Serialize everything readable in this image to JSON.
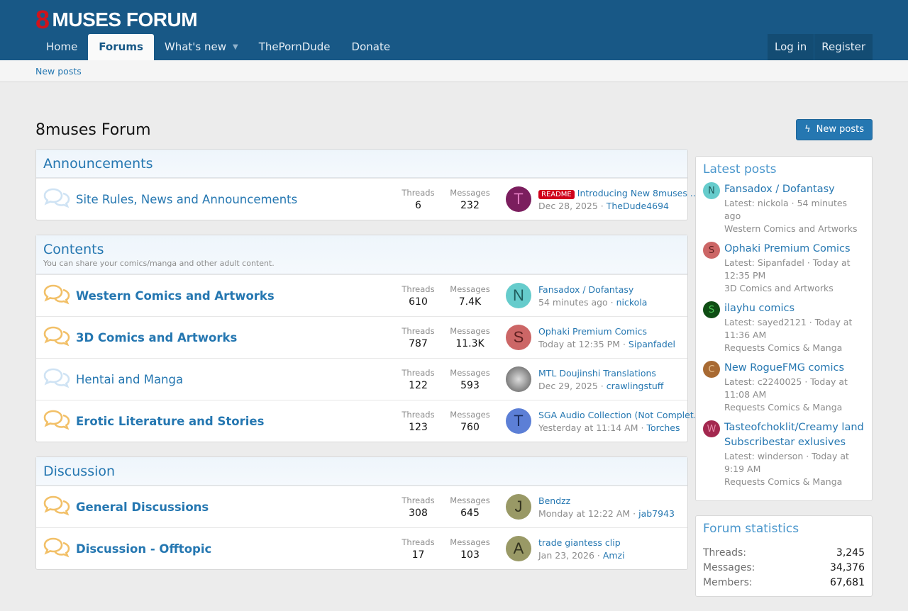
{
  "header": {
    "logo_text": "MUSES FORUM",
    "logo_mark": "8",
    "nav": [
      {
        "label": "Home"
      },
      {
        "label": "Forums",
        "active": true
      },
      {
        "label": "What's new",
        "dropdown": true
      },
      {
        "label": "ThePornDude"
      },
      {
        "label": "Donate"
      }
    ],
    "login": "Log in",
    "register": "Register"
  },
  "subnav": {
    "new_posts": "New posts"
  },
  "page": {
    "title": "8muses Forum",
    "new_posts_button": "New posts"
  },
  "labels": {
    "threads": "Threads",
    "messages": "Messages"
  },
  "colors": {
    "brand": "#185886",
    "link": "#2577b1",
    "unread_icon": "#f2c068",
    "read_icon": "#cfe3f4"
  },
  "categories": [
    {
      "title": "Announcements",
      "description": "",
      "forums": [
        {
          "name": "Site Rules, News and Announcements",
          "unread": false,
          "threads": "6",
          "messages": "232",
          "avatar": "T",
          "avatar_color": "#7b1e5e",
          "avatar_fg": "#e07bc0",
          "prefix": "README",
          "last_title": "Introducing New 8muses ...",
          "last_date": "Dec 28, 2025",
          "last_user": "TheDude4694"
        }
      ]
    },
    {
      "title": "Contents",
      "description": "You can share your comics/manga and other adult content.",
      "forums": [
        {
          "name": "Western Comics and Artworks",
          "unread": true,
          "threads": "610",
          "messages": "7.4K",
          "avatar": "N",
          "avatar_color": "#66cccc",
          "avatar_fg": "#1f5c5c",
          "last_title": "Fansadox / Dofantasy",
          "last_date": "54 minutes ago",
          "last_user": "nickola"
        },
        {
          "name": "3D Comics and Artworks",
          "unread": true,
          "threads": "787",
          "messages": "11.3K",
          "avatar": "S",
          "avatar_color": "#cc6666",
          "avatar_fg": "#5c1f1f",
          "last_title": "Ophaki Premium Comics",
          "last_date": "Today at 12:35 PM",
          "last_user": "Sipanfadel"
        },
        {
          "name": "Hentai and Manga",
          "unread": false,
          "threads": "122",
          "messages": "593",
          "avatar": "",
          "avatar_color": "#888888",
          "avatar_fg": "#fff",
          "last_title": "MTL Doujinshi Translations",
          "last_date": "Dec 29, 2025",
          "last_user": "crawlingstuff"
        },
        {
          "name": "Erotic Literature and Stories",
          "unread": true,
          "threads": "123",
          "messages": "760",
          "avatar": "T",
          "avatar_color": "#5c7fd6",
          "avatar_fg": "#1a2d5c",
          "last_title": "SGA Audio Collection (Not Complet...",
          "last_date": "Yesterday at 11:14 AM",
          "last_user": "Torches"
        }
      ]
    },
    {
      "title": "Discussion",
      "description": "",
      "forums": [
        {
          "name": "General Discussions",
          "unread": true,
          "threads": "308",
          "messages": "645",
          "avatar": "J",
          "avatar_color": "#999966",
          "avatar_fg": "#33331f",
          "last_title": "Bendzz",
          "last_date": "Monday at 12:22 AM",
          "last_user": "jab7943"
        },
        {
          "name": "Discussion - Offtopic",
          "unread": true,
          "threads": "17",
          "messages": "103",
          "avatar": "A",
          "avatar_color": "#999966",
          "avatar_fg": "#33331f",
          "last_title": "trade giantess clip",
          "last_date": "Jan 23, 2026",
          "last_user": "Amzi"
        }
      ]
    }
  ],
  "sidebar": {
    "latest_title": "Latest posts",
    "latest": [
      {
        "title": "Fansadox / Dofantasy",
        "meta": "Latest: nickola · 54 minutes ago",
        "forum": "Western Comics and Artworks",
        "avatar": "N",
        "avatar_color": "#66cccc",
        "avatar_fg": "#1f5c5c"
      },
      {
        "title": "Ophaki Premium Comics",
        "meta": "Latest: Sipanfadel · Today at 12:35 PM",
        "forum": "3D Comics and Artworks",
        "avatar": "S",
        "avatar_color": "#cc6666",
        "avatar_fg": "#5c1f1f"
      },
      {
        "title": "ilayhu comics",
        "meta": "Latest: sayed2121 · Today at 11:36 AM",
        "forum": "Requests Comics & Manga",
        "avatar": "S",
        "avatar_color": "#0f4d14",
        "avatar_fg": "#4fcc5a"
      },
      {
        "title": "New RogueFMG comics",
        "meta": "Latest: c2240025 · Today at 11:08 AM",
        "forum": "Requests Comics & Manga",
        "avatar": "C",
        "avatar_color": "#a86a33",
        "avatar_fg": "#e8c08f"
      },
      {
        "title": "Tasteofchoklit/Creamy land Subscribestar exlusives",
        "meta": "Latest: winderson · Today at 9:19 AM",
        "forum": "Requests Comics & Manga",
        "avatar": "W",
        "avatar_color": "#a3284f",
        "avatar_fg": "#e68aa8"
      }
    ],
    "stats_title": "Forum statistics",
    "stats": [
      {
        "k": "Threads:",
        "v": "3,245"
      },
      {
        "k": "Messages:",
        "v": "34,376"
      },
      {
        "k": "Members:",
        "v": "67,681"
      }
    ]
  }
}
